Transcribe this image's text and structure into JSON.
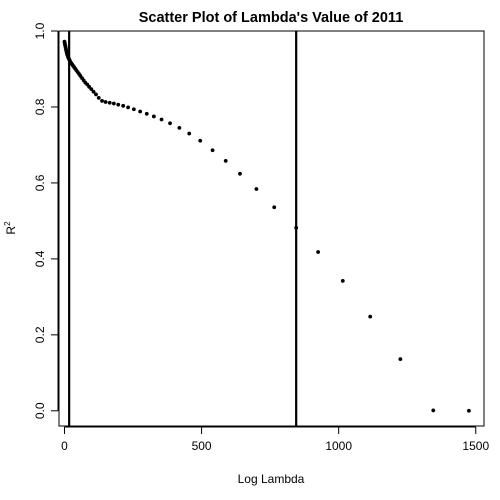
{
  "chart_data": {
    "type": "scatter",
    "title": "Scatter Plot of Lambda's Value of 2011",
    "xlabel": "Log Lambda",
    "ylabel_base": "R",
    "ylabel_sup": "2",
    "xlim": [
      -20,
      1530
    ],
    "ylim": [
      -0.04,
      1.0
    ],
    "xticks": [
      0,
      500,
      1000,
      1500
    ],
    "xtick_labels": [
      "0",
      "500",
      "1000",
      "1500"
    ],
    "yticks": [
      0.0,
      0.2,
      0.4,
      0.6,
      0.8,
      1.0
    ],
    "ytick_labels": [
      "0.0",
      "0.2",
      "0.4",
      "0.6",
      "0.8",
      "1.0"
    ],
    "grid": false,
    "vlines": [
      17,
      845
    ],
    "marker_color": "#000000",
    "x": [
      0,
      1,
      2,
      3,
      4,
      5,
      6,
      7,
      8,
      9,
      10,
      12,
      14,
      16,
      18,
      20,
      22,
      25,
      28,
      31,
      35,
      39,
      43,
      48,
      53,
      58,
      64,
      70,
      76,
      83,
      90,
      98,
      106,
      115,
      125,
      137,
      150,
      165,
      180,
      196,
      214,
      232,
      253,
      276,
      300,
      326,
      354,
      385,
      419,
      455,
      495,
      540,
      588,
      640,
      700,
      765,
      845,
      925,
      1015,
      1115,
      1225,
      1345,
      1475
    ],
    "y": [
      0.972,
      0.968,
      0.964,
      0.961,
      0.957,
      0.954,
      0.95,
      0.947,
      0.944,
      0.941,
      0.938,
      0.934,
      0.93,
      0.927,
      0.924,
      0.921,
      0.918,
      0.915,
      0.912,
      0.909,
      0.905,
      0.901,
      0.897,
      0.892,
      0.887,
      0.882,
      0.876,
      0.87,
      0.864,
      0.859,
      0.853,
      0.847,
      0.84,
      0.833,
      0.824,
      0.816,
      0.813,
      0.811,
      0.809,
      0.806,
      0.803,
      0.799,
      0.794,
      0.788,
      0.782,
      0.775,
      0.767,
      0.757,
      0.745,
      0.73,
      0.711,
      0.686,
      0.658,
      0.624,
      0.584,
      0.536,
      0.482,
      0.418,
      0.342,
      0.248,
      0.136,
      0.001,
      0.0
    ]
  }
}
